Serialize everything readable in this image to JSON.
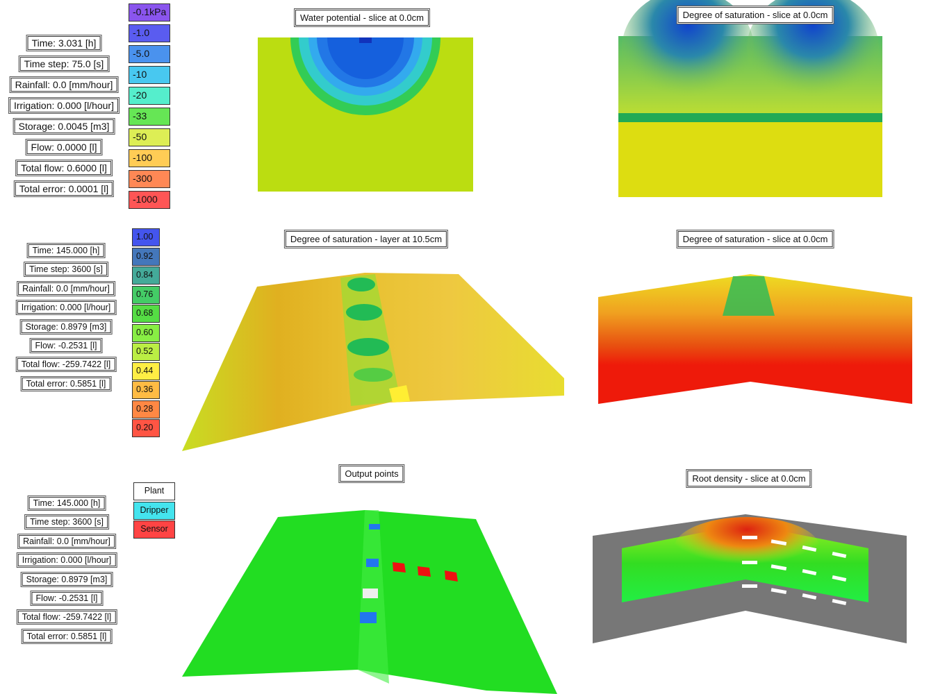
{
  "rows": [
    {
      "stats": [
        "Time: 3.031 [h]",
        "Time step: 75.0 [s]",
        "Rainfall: 0.0 [mm/hour]",
        "Irrigation: 0.000 [l/hour]",
        "Storage: 0.0045 [m3]",
        "Flow: 0.0000 [l]",
        "Total flow: 0.6000 [l]",
        "Total error: 0.0001 [l]"
      ],
      "legend": [
        {
          "label": "-0.1kPa",
          "color": "#8a55ee"
        },
        {
          "label": "-1.0",
          "color": "#5a5cf0"
        },
        {
          "label": "-5.0",
          "color": "#4a92ee"
        },
        {
          "label": "-10",
          "color": "#48c8f0"
        },
        {
          "label": "-20",
          "color": "#55eecc"
        },
        {
          "label": "-33",
          "color": "#66e655"
        },
        {
          "label": "-50",
          "color": "#ddee55"
        },
        {
          "label": "-100",
          "color": "#ffcc55"
        },
        {
          "label": "-300",
          "color": "#ff8855"
        },
        {
          "label": "-1000",
          "color": "#ff5555"
        }
      ],
      "panels": [
        {
          "title": "Water potential - slice at 0.0cm"
        },
        {
          "title": "Degree of saturation - slice at 0.0cm"
        }
      ]
    },
    {
      "stats": [
        "Time: 145.000 [h]",
        "Time step: 3600 [s]",
        "Rainfall: 0.0 [mm/hour]",
        "Irrigation: 0.000 [l/hour]",
        "Storage: 0.8979 [m3]",
        "Flow: -0.2531 [l]",
        "Total flow: -259.7422 [l]",
        "Total error: 0.5851 [l]"
      ],
      "legend": [
        {
          "label": "1.00",
          "color": "#4455ee"
        },
        {
          "label": "0.92",
          "color": "#4477bb"
        },
        {
          "label": "0.84",
          "color": "#44aa99"
        },
        {
          "label": "0.76",
          "color": "#44cc66"
        },
        {
          "label": "0.68",
          "color": "#55dd44"
        },
        {
          "label": "0.60",
          "color": "#88ee44"
        },
        {
          "label": "0.52",
          "color": "#bbee44"
        },
        {
          "label": "0.44",
          "color": "#ffee44"
        },
        {
          "label": "0.36",
          "color": "#ffbb44"
        },
        {
          "label": "0.28",
          "color": "#ff8844"
        },
        {
          "label": "0.20",
          "color": "#ff5544"
        }
      ],
      "panels": [
        {
          "title": "Degree of saturation - layer at 10.5cm"
        },
        {
          "title": "Degree of saturation - slice at 0.0cm"
        }
      ]
    },
    {
      "stats": [
        "Time: 145.000 [h]",
        "Time step: 3600 [s]",
        "Rainfall: 0.0 [mm/hour]",
        "Irrigation: 0.000 [l/hour]",
        "Storage: 0.8979 [m3]",
        "Flow: -0.2531 [l]",
        "Total flow: -259.7422 [l]",
        "Total error: 0.5851 [l]"
      ],
      "legend": [
        {
          "label": "Plant",
          "color": "#ffffff"
        },
        {
          "label": "Dripper",
          "color": "#44e4ee"
        },
        {
          "label": "Sensor",
          "color": "#ff4444"
        }
      ],
      "panels": [
        {
          "title": "Output points"
        },
        {
          "title": "Root density - slice at 0.0cm"
        }
      ]
    }
  ]
}
